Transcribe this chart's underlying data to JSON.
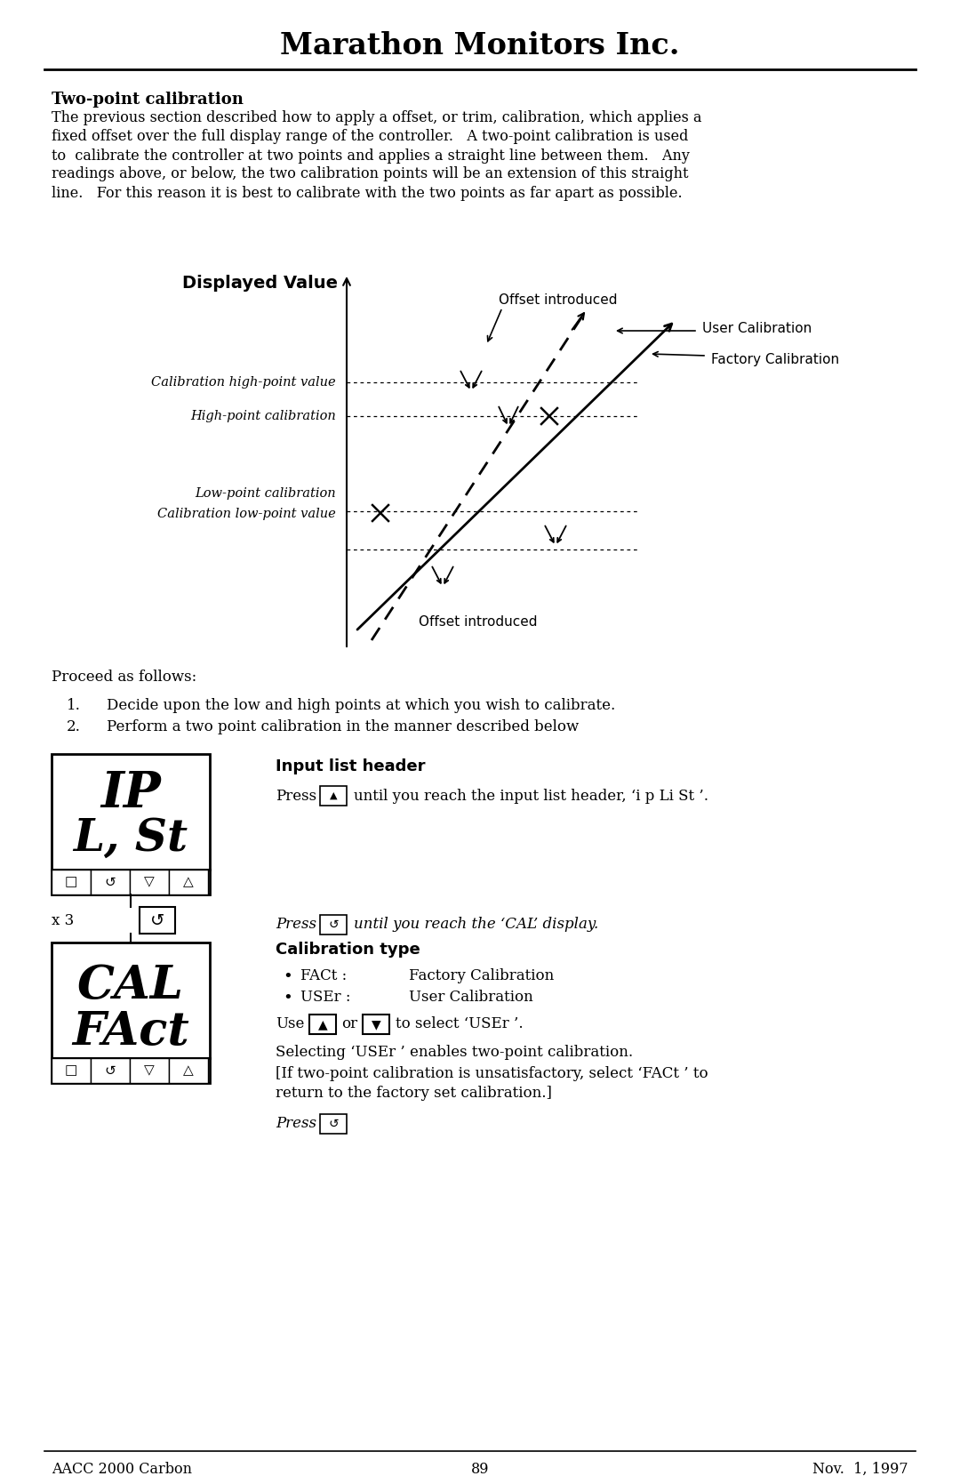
{
  "title": "Marathon Monitors Inc.",
  "section_title": "Two-point calibration",
  "body_line1": "The previous section described how to apply a offset, or trim, calibration, which applies a",
  "body_line2": "fixed offset over the full display range of the controller.   A two-point calibration is used",
  "body_line3": "to  calibrate the controller at two points and applies a straight line between them.   Any",
  "body_line4": "readings above, or below, the two calibration points will be an extension of this straight",
  "body_line5": "line.   For this reason it is best to calibrate with the two points as far apart as possible.",
  "diagram_xlabel": "Displayed Value",
  "label_high_point_value": "Calibration high-point value",
  "label_high_point": "High-point calibration",
  "label_low_point_calib": "Low-point calibration",
  "label_low_point_value": "Calibration low-point value",
  "label_offset_top": "Offset introduced",
  "label_offset_bottom": "Offset introduced",
  "label_user_cal": "User Calibration",
  "label_factory_cal": "Factory Calibration",
  "proceed_text": "Proceed as follows:",
  "step1": "Decide upon the low and high points at which you wish to calibrate.",
  "step2": "Perform a two point calibration in the manner described below",
  "input_list_header_title": "Input list header",
  "cal_type_title": "Calibration type",
  "bullet1_key": "FACt :",
  "bullet1_val": "Factory Calibration",
  "bullet2_key": "USEr :",
  "bullet2_val": "User Calibration",
  "to_select_text": "to select ‘USEr ’.",
  "selecting_line1": "Selecting ‘USEr ’ enables two-point calibration.",
  "selecting_line2": "[If two-point calibration is unsatisfactory, select ‘FACt ’ to",
  "selecting_line3": "return to the factory set calibration.]",
  "x3_label": "x 3",
  "footer_left": "AACC 2000 Carbon",
  "footer_center": "89",
  "footer_right": "Nov.  1, 1997",
  "bg_color": "#ffffff",
  "text_color": "#000000"
}
